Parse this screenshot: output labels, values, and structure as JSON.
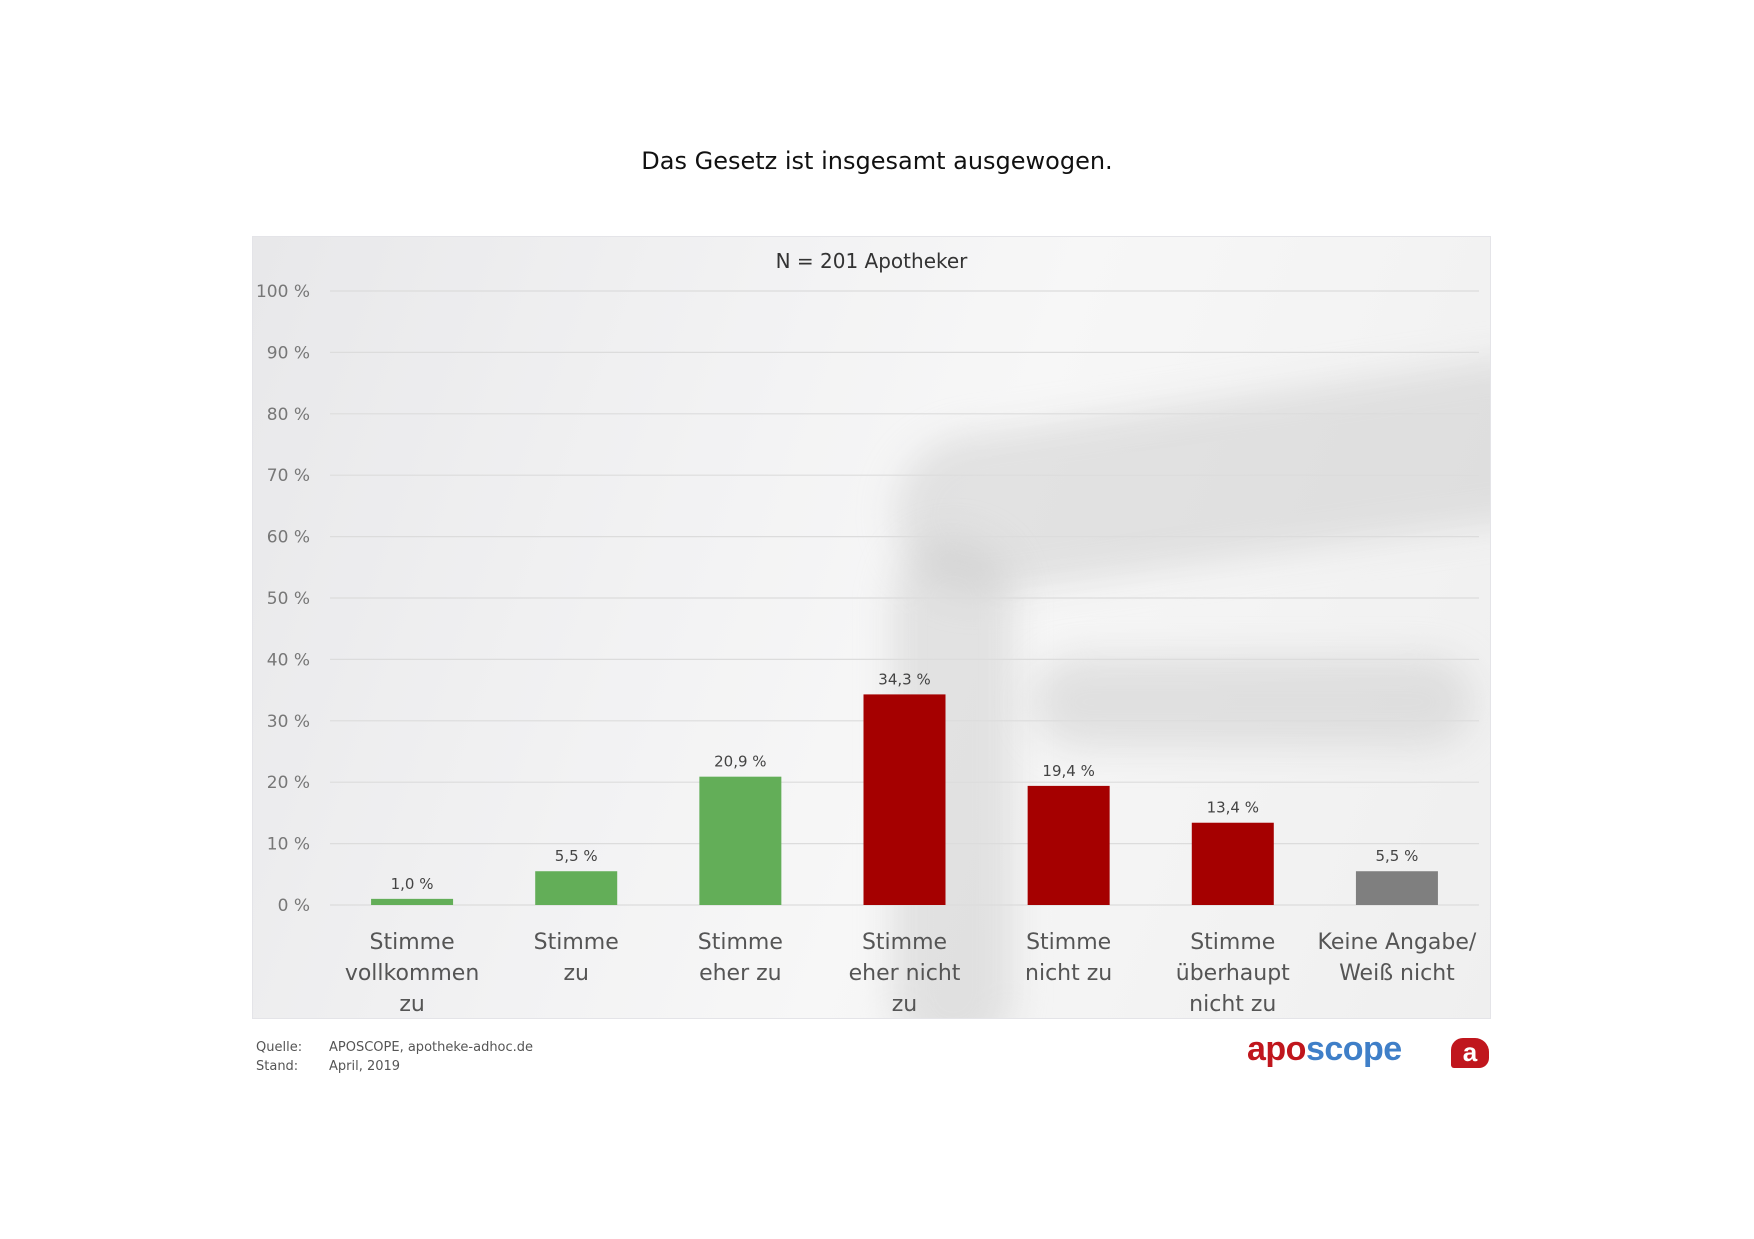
{
  "chart_data": {
    "type": "bar",
    "title": "Das Gesetz ist insgesamt ausgewogen.",
    "subtitle": "N = 201 Apotheker",
    "xlabel": "",
    "ylabel": "",
    "ylim": [
      0,
      100
    ],
    "grid": true,
    "yticks": [
      0,
      10,
      20,
      30,
      40,
      50,
      60,
      70,
      80,
      90,
      100
    ],
    "ytick_labels": [
      "0 %",
      "10 %",
      "20 %",
      "30 %",
      "40 %",
      "50 %",
      "60 %",
      "70 %",
      "80 %",
      "90 %",
      "100 %"
    ],
    "categories": [
      [
        "Stimme",
        "vollkommen",
        "zu"
      ],
      [
        "Stimme",
        "zu"
      ],
      [
        "Stimme",
        "eher zu"
      ],
      [
        "Stimme",
        "eher nicht",
        "zu"
      ],
      [
        "Stimme",
        "nicht zu"
      ],
      [
        "Stimme",
        "überhaupt",
        "nicht zu"
      ],
      [
        "Keine Angabe/",
        "Weiß nicht"
      ]
    ],
    "values": [
      1.0,
      5.5,
      20.9,
      34.3,
      19.4,
      13.4,
      5.5
    ],
    "value_labels": [
      "1,0 %",
      "5,5 %",
      "20,9 %",
      "34,3 %",
      "19,4 %",
      "13,4 %",
      "5,5 %"
    ],
    "colors": [
      "#63ae58",
      "#63ae58",
      "#63ae58",
      "#a50000",
      "#a50000",
      "#a50000",
      "#7f7f7f"
    ]
  },
  "footer": {
    "source_label": "Quelle:",
    "source_value": "APOSCOPE, apotheke-adhoc.de",
    "date_label": "Stand:",
    "date_value": "April, 2019"
  },
  "logo": {
    "part1": "apo",
    "part2": "scope",
    "badge": "a",
    "colors": {
      "red": "#c0161d",
      "blue": "#3f7fc8"
    }
  }
}
